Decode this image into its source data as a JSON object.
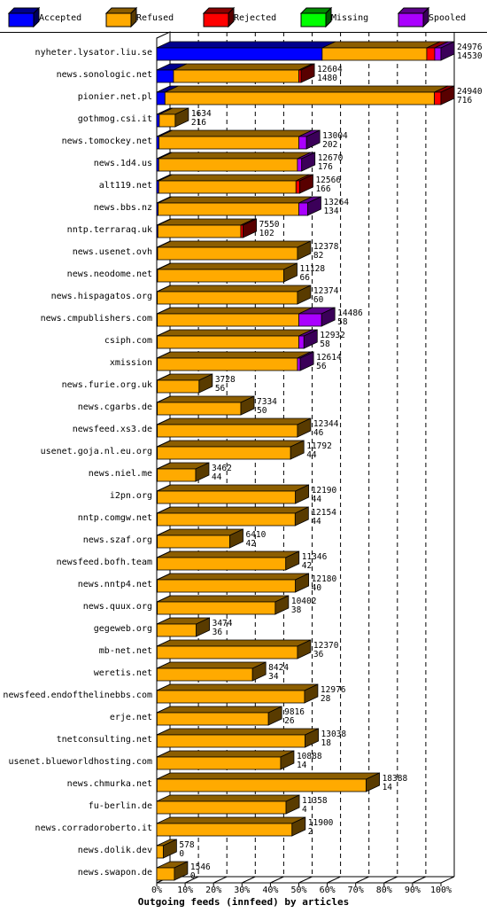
{
  "chart_data": {
    "type": "bar",
    "orientation": "horizontal",
    "stacked": true,
    "title": "",
    "xlabel": "Outgoing feeds (innfeed) by articles",
    "ylabel": "",
    "xlim": [
      0,
      100
    ],
    "x_unit": "%",
    "grid": true,
    "legend_position": "top",
    "legend": [
      {
        "name": "Accepted",
        "color": "#0000ff"
      },
      {
        "name": "Refused",
        "color": "#ffaa00"
      },
      {
        "name": "Rejected",
        "color": "#ff0000"
      },
      {
        "name": "Missing",
        "color": "#00ff00"
      },
      {
        "name": "Spooled",
        "color": "#aa00ff"
      }
    ],
    "x_ticks": [
      "0%",
      "10%",
      "20%",
      "30%",
      "40%",
      "50%",
      "60%",
      "70%",
      "80%",
      "90%",
      "100%"
    ],
    "bars": [
      {
        "host": "nyheter.lysator.liu.se",
        "total": "24976",
        "accepted": "14530",
        "segments_pct": [
          58.2,
          36.8,
          2.8,
          0,
          2.2
        ]
      },
      {
        "host": "news.sonologic.net",
        "total": "12604",
        "accepted": "1480",
        "segments_pct": [
          5.9,
          44.1,
          0.8,
          0,
          0
        ]
      },
      {
        "host": "pionier.net.pl",
        "total": "24940",
        "accepted": "716",
        "segments_pct": [
          2.9,
          94.8,
          2.3,
          0,
          0
        ]
      },
      {
        "host": "gothmog.csi.it",
        "total": "1634",
        "accepted": "216",
        "segments_pct": [
          0.9,
          5.6,
          0,
          0,
          0
        ]
      },
      {
        "host": "news.tomockey.net",
        "total": "13004",
        "accepted": "202",
        "segments_pct": [
          0.8,
          49.2,
          0,
          0,
          2.7
        ]
      },
      {
        "host": "news.1d4.us",
        "total": "12670",
        "accepted": "176",
        "segments_pct": [
          0.7,
          48.8,
          0,
          0,
          1.5
        ]
      },
      {
        "host": "alt119.net",
        "total": "12566",
        "accepted": "166",
        "segments_pct": [
          0.7,
          48.3,
          1.3,
          0,
          0
        ]
      },
      {
        "host": "news.bbs.nz",
        "total": "13264",
        "accepted": "134",
        "segments_pct": [
          0.5,
          49.5,
          0,
          0,
          3.1
        ]
      },
      {
        "host": "nntp.terraraq.uk",
        "total": "7550",
        "accepted": "102",
        "segments_pct": [
          0.4,
          29.2,
          0.8,
          0,
          0
        ]
      },
      {
        "host": "news.usenet.ovh",
        "total": "12378",
        "accepted": "82",
        "segments_pct": [
          0.3,
          49.2,
          0,
          0,
          0
        ]
      },
      {
        "host": "news.neodome.net",
        "total": "11128",
        "accepted": "66",
        "segments_pct": [
          0.3,
          44.4,
          0,
          0,
          0
        ]
      },
      {
        "host": "news.hispagatos.org",
        "total": "12374",
        "accepted": "60",
        "segments_pct": [
          0.2,
          49.3,
          0,
          0,
          0
        ]
      },
      {
        "host": "news.cmpublishers.com",
        "total": "14486",
        "accepted": "58",
        "segments_pct": [
          0.2,
          49.8,
          0,
          0,
          8.0
        ]
      },
      {
        "host": "csiph.com",
        "total": "12932",
        "accepted": "58",
        "segments_pct": [
          0.2,
          49.8,
          0,
          0,
          1.8
        ]
      },
      {
        "host": "xmission",
        "total": "12614",
        "accepted": "56",
        "segments_pct": [
          0.2,
          49.3,
          0,
          0,
          1.0
        ]
      },
      {
        "host": "news.furie.org.uk",
        "total": "3728",
        "accepted": "56",
        "segments_pct": [
          0.2,
          14.7,
          0,
          0,
          0
        ]
      },
      {
        "host": "news.cgarbs.de",
        "total": "7334",
        "accepted": "50",
        "segments_pct": [
          0.2,
          29.4,
          0,
          0,
          0
        ]
      },
      {
        "host": "newsfeed.xs3.de",
        "total": "12344",
        "accepted": "46",
        "segments_pct": [
          0.2,
          49.3,
          0,
          0,
          0
        ]
      },
      {
        "host": "usenet.goja.nl.eu.org",
        "total": "11792",
        "accepted": "44",
        "segments_pct": [
          0.2,
          46.9,
          0,
          0,
          0
        ]
      },
      {
        "host": "news.niel.me",
        "total": "3462",
        "accepted": "44",
        "segments_pct": [
          0.2,
          13.5,
          0,
          0,
          0
        ]
      },
      {
        "host": "i2pn.org",
        "total": "12190",
        "accepted": "44",
        "segments_pct": [
          0.2,
          48.6,
          0,
          0,
          0
        ]
      },
      {
        "host": "nntp.comgw.net",
        "total": "12154",
        "accepted": "44",
        "segments_pct": [
          0.2,
          48.5,
          0,
          0,
          0
        ]
      },
      {
        "host": "news.szaf.org",
        "total": "6410",
        "accepted": "42",
        "segments_pct": [
          0.2,
          25.5,
          0,
          0,
          0
        ]
      },
      {
        "host": "newsfeed.bofh.team",
        "total": "11346",
        "accepted": "42",
        "segments_pct": [
          0.2,
          45.2,
          0,
          0,
          0
        ]
      },
      {
        "host": "news.nntp4.net",
        "total": "12180",
        "accepted": "40",
        "segments_pct": [
          0.2,
          48.6,
          0,
          0,
          0
        ]
      },
      {
        "host": "news.quux.org",
        "total": "10402",
        "accepted": "38",
        "segments_pct": [
          0.2,
          41.5,
          0,
          0,
          0
        ]
      },
      {
        "host": "gegeweb.org",
        "total": "3474",
        "accepted": "36",
        "segments_pct": [
          0.1,
          13.8,
          0,
          0,
          0
        ]
      },
      {
        "host": "mb-net.net",
        "total": "12370",
        "accepted": "36",
        "segments_pct": [
          0.1,
          49.4,
          0,
          0,
          0
        ]
      },
      {
        "host": "weretis.net",
        "total": "8424",
        "accepted": "34",
        "segments_pct": [
          0.1,
          33.6,
          0,
          0,
          0
        ]
      },
      {
        "host": "newsfeed.endofthelinebbs.com",
        "total": "12976",
        "accepted": "28",
        "segments_pct": [
          0.1,
          51.9,
          0,
          0,
          0
        ]
      },
      {
        "host": "erje.net",
        "total": "9816",
        "accepted": "26",
        "segments_pct": [
          0.1,
          39.2,
          0,
          0,
          0
        ]
      },
      {
        "host": "tnetconsulting.net",
        "total": "13038",
        "accepted": "18",
        "segments_pct": [
          0.1,
          52.1,
          0,
          0,
          0
        ]
      },
      {
        "host": "usenet.blueworldhosting.com",
        "total": "10888",
        "accepted": "14",
        "segments_pct": [
          0.1,
          43.5,
          0,
          0,
          0
        ]
      },
      {
        "host": "news.chmurka.net",
        "total": "18388",
        "accepted": "14",
        "segments_pct": [
          0.1,
          73.6,
          0,
          0,
          0
        ]
      },
      {
        "host": "fu-berlin.de",
        "total": "11358",
        "accepted": "4",
        "segments_pct": [
          0,
          45.5,
          0,
          0,
          0
        ]
      },
      {
        "host": "news.corradoroberto.it",
        "total": "11900",
        "accepted": "2",
        "segments_pct": [
          0,
          47.6,
          0,
          0,
          0
        ]
      },
      {
        "host": "news.dolik.dev",
        "total": "578",
        "accepted": "0",
        "segments_pct": [
          0,
          2.3,
          0,
          0,
          0
        ]
      },
      {
        "host": "news.swapon.de",
        "total": "1546",
        "accepted": "0",
        "segments_pct": [
          0,
          6.2,
          0,
          0,
          0
        ]
      }
    ]
  }
}
